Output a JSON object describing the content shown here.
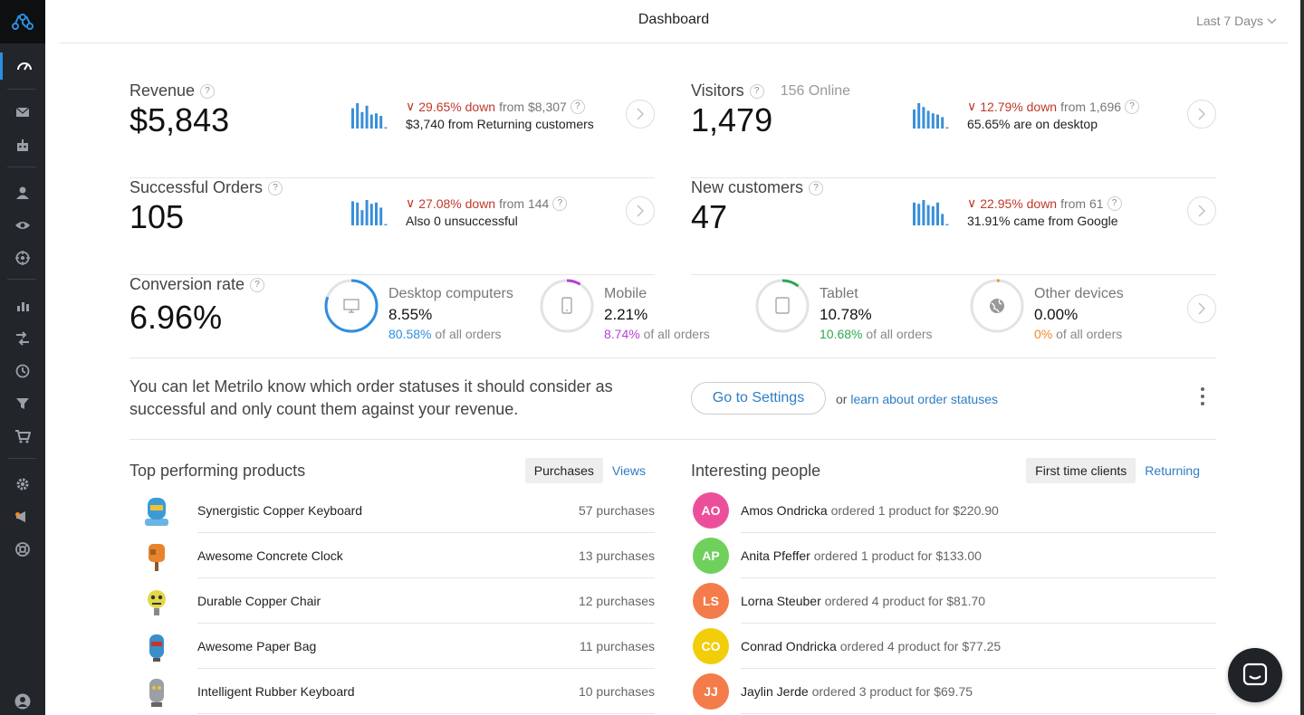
{
  "header": {
    "title": "Dashboard",
    "range": "Last 7 Days"
  },
  "sidebar": {
    "icons": [
      "logo-icon",
      "dashboard-icon",
      "mail-icon",
      "robot-icon",
      "user-icon",
      "eye-icon",
      "target-icon",
      "bar-chart-icon",
      "flows-icon",
      "history-icon",
      "funnel-icon",
      "cart-icon",
      "gear-icon",
      "announcement-icon",
      "help-icon",
      "profile-icon"
    ]
  },
  "metrics": {
    "revenue": {
      "label": "Revenue",
      "value": "$5,843",
      "change": "29.65% down",
      "from": "from $8,307",
      "sub": "$3,740 from Returning customers",
      "spark": [
        0.8,
        1.0,
        0.65,
        0.9,
        0.55,
        0.6,
        0.5,
        0.05
      ]
    },
    "visitors": {
      "label": "Visitors",
      "online": "156 Online",
      "value": "1,479",
      "change": "12.79% down",
      "from": "from 1,696",
      "sub": "65.65% are on desktop",
      "spark": [
        0.75,
        1.0,
        0.85,
        0.7,
        0.6,
        0.55,
        0.45,
        0.05
      ]
    },
    "orders": {
      "label": "Successful Orders",
      "value": "105",
      "change": "27.08% down",
      "from": "from 144",
      "sub": "Also 0 unsuccessful",
      "spark": [
        0.95,
        0.9,
        0.6,
        1.0,
        0.85,
        0.9,
        0.7,
        0.05
      ]
    },
    "customers": {
      "label": "New customers",
      "value": "47",
      "change": "22.95% down",
      "from": "from 61",
      "sub": "31.91% came from Google",
      "spark": [
        0.9,
        0.85,
        1.0,
        0.8,
        0.75,
        0.9,
        0.45,
        0.05
      ]
    }
  },
  "conversion": {
    "label": "Conversion rate",
    "value": "6.96%",
    "devices": [
      {
        "name": "Desktop computers",
        "value": "8.55%",
        "share": "80.58%",
        "share_num": 80.58,
        "suffix": "of all orders",
        "color": "#2d8ee0",
        "icon": "desktop-icon"
      },
      {
        "name": "Mobile",
        "value": "2.21%",
        "share": "8.74%",
        "share_num": 8.74,
        "suffix": "of all orders",
        "color": "#b63fd6",
        "icon": "mobile-icon"
      },
      {
        "name": "Tablet",
        "value": "10.78%",
        "share": "10.68%",
        "share_num": 10.68,
        "suffix": "of all orders",
        "color": "#2fa84f",
        "icon": "tablet-icon"
      },
      {
        "name": "Other devices",
        "value": "0.00%",
        "share": "0%",
        "share_num": 0,
        "suffix": "of all orders",
        "color": "#f08a24",
        "icon": "globe-icon"
      }
    ]
  },
  "note": {
    "text": "You can let Metrilo know which order statuses it should consider as successful and only count them against your revenue.",
    "button": "Go to Settings",
    "or": "or",
    "link": "learn about order statuses"
  },
  "products": {
    "title": "Top performing products",
    "tabs": [
      "Purchases",
      "Views"
    ],
    "items": [
      {
        "name": "Synergistic Copper Keyboard",
        "count": "57 purchases",
        "color": "#3a9bd9"
      },
      {
        "name": "Awesome Concrete Clock",
        "count": "13 purchases",
        "color": "#e8842c"
      },
      {
        "name": "Durable Copper Chair",
        "count": "12 purchases",
        "color": "#e2d84a"
      },
      {
        "name": "Awesome Paper Bag",
        "count": "11 purchases",
        "color": "#3a8fc9"
      },
      {
        "name": "Intelligent Rubber Keyboard",
        "count": "10 purchases",
        "color": "#9aa0a6"
      }
    ]
  },
  "people": {
    "title": "Interesting people",
    "tabs": [
      "First time clients",
      "Returning"
    ],
    "items": [
      {
        "initials": "AO",
        "name": "Amos Ondricka",
        "detail": "ordered 1 product for $220.90",
        "color": "#ec4f9a"
      },
      {
        "initials": "AP",
        "name": "Anita Pfeffer",
        "detail": "ordered 1 product for $133.00",
        "color": "#6fd05c"
      },
      {
        "initials": "LS",
        "name": "Lorna Steuber",
        "detail": "ordered 4 product for $81.70",
        "color": "#f47c4a"
      },
      {
        "initials": "CO",
        "name": "Conrad Ondricka",
        "detail": "ordered 4 product for $77.25",
        "color": "#f2cd0a"
      },
      {
        "initials": "JJ",
        "name": "Jaylin Jerde",
        "detail": "ordered 3 product for $69.75",
        "color": "#f47c4a"
      }
    ]
  }
}
